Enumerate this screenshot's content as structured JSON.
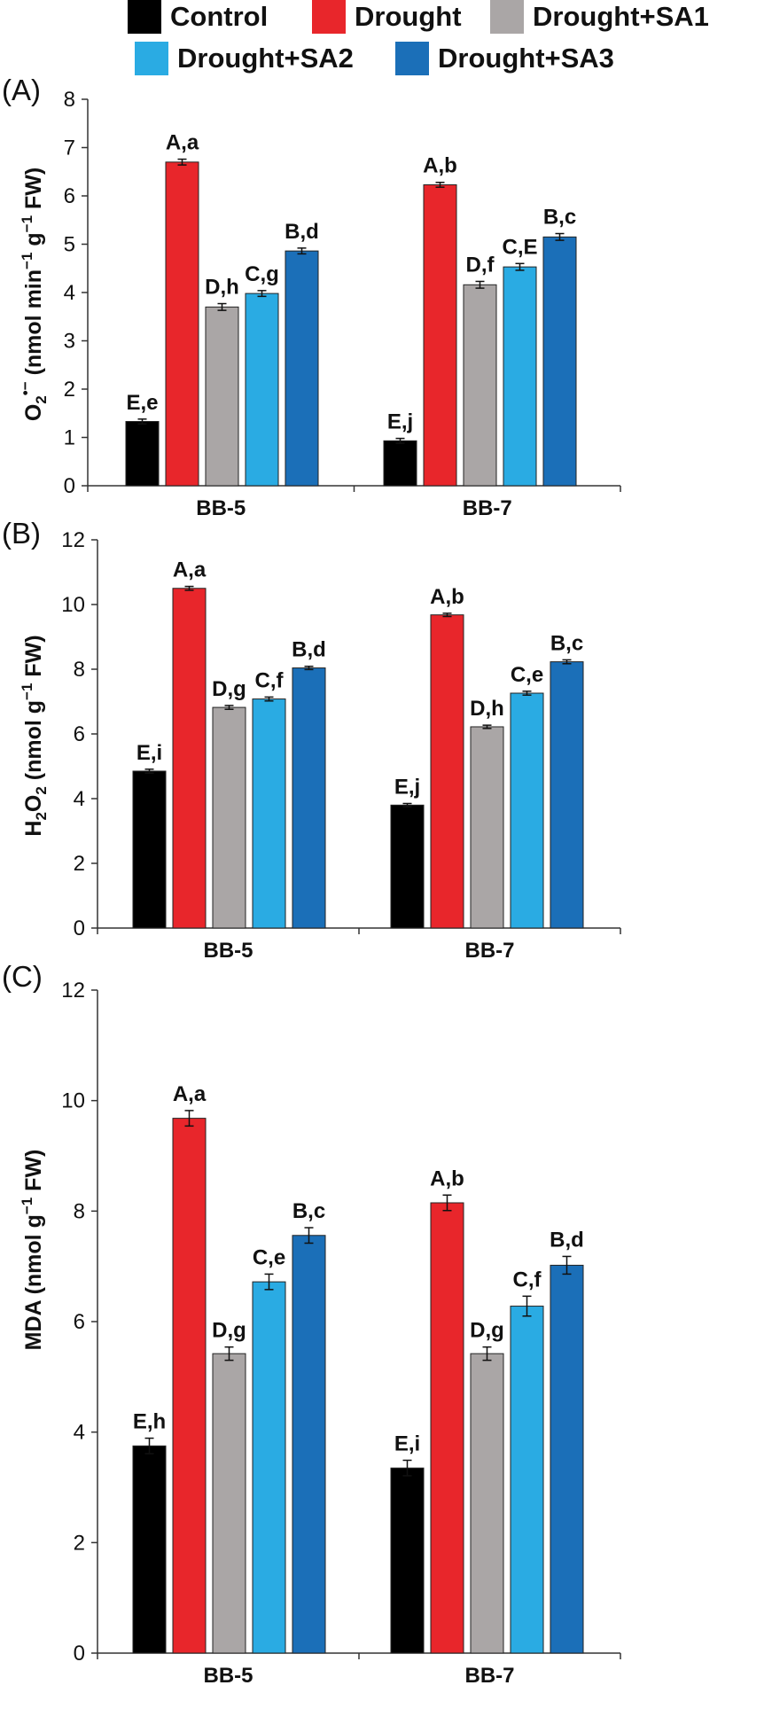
{
  "legend": {
    "items": [
      {
        "name": "Control",
        "color": "#000000"
      },
      {
        "name": "Drought",
        "color": "#e8262b"
      },
      {
        "name": "Drought+SA1",
        "color": "#aaa6a6"
      },
      {
        "name": "Drought+SA2",
        "color": "#2aabe3"
      },
      {
        "name": "Drought+SA3",
        "color": "#1b6fb8"
      }
    ]
  },
  "chart_data": [
    {
      "type": "bar",
      "panel_label": "(A)",
      "ylabel_main": "O",
      "ylabel_sub": "2",
      "ylabel_sup": "•−",
      "ylabel_rest": " (nmol min",
      "ylabel_sup2": "−1",
      "ylabel_rest2": " g",
      "ylabel_sup3": "−1",
      "ylabel_rest3": " FW)",
      "ylim": [
        0,
        8
      ],
      "yticks": [
        "0",
        "1",
        "2",
        "3",
        "4",
        "5",
        "6",
        "7",
        "8"
      ],
      "categories": [
        "BB-5",
        "BB-7"
      ],
      "series": [
        {
          "name": "Control",
          "values": [
            1.33,
            0.93
          ],
          "errors": [
            0.05,
            0.05
          ],
          "labels": [
            "E,e",
            "E,j"
          ]
        },
        {
          "name": "Drought",
          "values": [
            6.7,
            6.23
          ],
          "errors": [
            0.06,
            0.05
          ],
          "labels": [
            "A,a",
            "A,b"
          ]
        },
        {
          "name": "Drought+SA1",
          "values": [
            3.7,
            4.16
          ],
          "errors": [
            0.07,
            0.07
          ],
          "labels": [
            "D,h",
            "D,f"
          ]
        },
        {
          "name": "Drought+SA2",
          "values": [
            3.98,
            4.53
          ],
          "errors": [
            0.06,
            0.07
          ],
          "labels": [
            "C,g",
            "C,E"
          ]
        },
        {
          "name": "Drought+SA3",
          "values": [
            4.86,
            5.15
          ],
          "errors": [
            0.06,
            0.07
          ],
          "labels": [
            "B,d",
            "B,c"
          ]
        }
      ]
    },
    {
      "type": "bar",
      "panel_label": "(B)",
      "ylabel_main": "H",
      "ylabel_sub": "2",
      "ylabel_mid": "O",
      "ylabel_sub2": "2",
      "ylabel_rest": " (nmol g",
      "ylabel_sup": "−1",
      "ylabel_rest2": " FW)",
      "ylim": [
        0,
        12
      ],
      "yticks": [
        "0",
        "2",
        "4",
        "6",
        "8",
        "10",
        "12"
      ],
      "categories": [
        "BB-5",
        "BB-7"
      ],
      "series": [
        {
          "name": "Control",
          "values": [
            4.85,
            3.8
          ],
          "errors": [
            0.06,
            0.05
          ],
          "labels": [
            "E,i",
            "E,j"
          ]
        },
        {
          "name": "Drought",
          "values": [
            10.5,
            9.68
          ],
          "errors": [
            0.06,
            0.05
          ],
          "labels": [
            "A,a",
            "A,b"
          ]
        },
        {
          "name": "Drought+SA1",
          "values": [
            6.82,
            6.22
          ],
          "errors": [
            0.06,
            0.05
          ],
          "labels": [
            "D,g",
            "D,h"
          ]
        },
        {
          "name": "Drought+SA2",
          "values": [
            7.08,
            7.26
          ],
          "errors": [
            0.06,
            0.06
          ],
          "labels": [
            "C,f",
            "C,e"
          ]
        },
        {
          "name": "Drought+SA3",
          "values": [
            8.04,
            8.23
          ],
          "errors": [
            0.05,
            0.06
          ],
          "labels": [
            "B,d",
            "B,c"
          ]
        }
      ]
    },
    {
      "type": "bar",
      "panel_label": "(C)",
      "ylabel_main": "MDA (nmol g",
      "ylabel_sup": "−1",
      "ylabel_rest": " FW)",
      "ylim": [
        0,
        12
      ],
      "yticks": [
        "0",
        "2",
        "4",
        "6",
        "8",
        "10",
        "12"
      ],
      "categories": [
        "BB-5",
        "BB-7"
      ],
      "series": [
        {
          "name": "Control",
          "values": [
            3.75,
            3.35
          ],
          "errors": [
            0.14,
            0.14
          ],
          "labels": [
            "E,h",
            "E,i"
          ]
        },
        {
          "name": "Drought",
          "values": [
            9.68,
            8.15
          ],
          "errors": [
            0.14,
            0.14
          ],
          "labels": [
            "A,a",
            "A,b"
          ]
        },
        {
          "name": "Drought+SA1",
          "values": [
            5.42,
            5.42
          ],
          "errors": [
            0.12,
            0.12
          ],
          "labels": [
            "D,g",
            "D,g"
          ]
        },
        {
          "name": "Drought+SA2",
          "values": [
            6.72,
            6.28
          ],
          "errors": [
            0.14,
            0.18
          ],
          "labels": [
            "C,e",
            "C,f"
          ]
        },
        {
          "name": "Drought+SA3",
          "values": [
            7.56,
            7.02
          ],
          "errors": [
            0.14,
            0.16
          ],
          "labels": [
            "B,c",
            "B,d"
          ]
        }
      ]
    }
  ]
}
